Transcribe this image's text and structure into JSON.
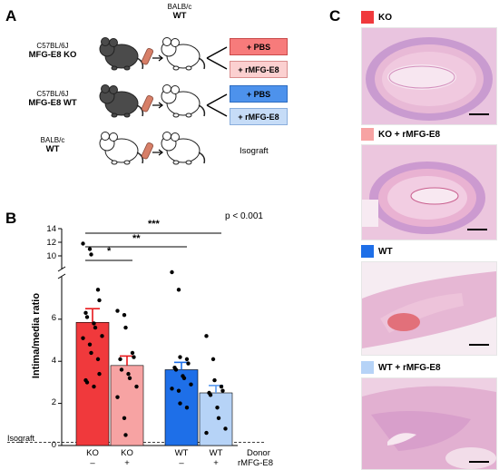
{
  "panel_a": {
    "letter": "A",
    "donor_top": {
      "line1": "BALB/c",
      "line2": "WT"
    },
    "rows": [
      {
        "strain": "C57BL/6J",
        "name": "MFG-E8 KO",
        "mouse": "dark",
        "boxes": [
          {
            "label": "+ PBS",
            "fill": "#f77b7b",
            "stroke": "#c94a4a"
          },
          {
            "label": "+ rMFG-E8",
            "fill": "#fbd0d0",
            "stroke": "#d98e8e"
          }
        ]
      },
      {
        "strain": "C57BL/6J",
        "name": "MFG-E8 WT",
        "mouse": "dark",
        "boxes": [
          {
            "label": "+ PBS",
            "fill": "#4d92ec",
            "stroke": "#2d6cc0"
          },
          {
            "label": "+ rMFG-E8",
            "fill": "#c6dcf7",
            "stroke": "#8aaedc"
          }
        ]
      },
      {
        "strain": "BALB/c",
        "name": "WT",
        "mouse": "white",
        "isograft": "Isograft"
      }
    ]
  },
  "panel_b": {
    "letter": "B",
    "pvalue": "p < 0.001",
    "sig": [
      "*",
      "**",
      "***"
    ],
    "isograft_label": "Isograft",
    "donor_row_label": "Donor",
    "rmfg_row_label": "rMFG-E8",
    "chart_data": {
      "type": "bar",
      "ylabel": "Intima/media ratio",
      "yticks_lower": [
        "0",
        "2",
        "4",
        "6"
      ],
      "yticks_upper": [
        "10",
        "12",
        "14"
      ],
      "axis_break": true,
      "ylim_lower": [
        0,
        7.5
      ],
      "ylim_upper": [
        9.5,
        14
      ],
      "isograft_line": 0.15,
      "categories": [
        "KO",
        "KO",
        "WT",
        "WT"
      ],
      "treatment": [
        "–",
        "+",
        "–",
        "+"
      ],
      "colors": [
        "#f0393c",
        "#f7a3a3",
        "#1e6fe8",
        "#b6d3f7"
      ],
      "err_colors": [
        "#e8171b",
        "#e8171b",
        "#1e6fe8",
        "#5a9af0"
      ],
      "values": [
        5.85,
        3.8,
        3.6,
        2.5
      ],
      "errors": [
        0.65,
        0.45,
        0.35,
        0.35
      ],
      "points": [
        [
          11.8,
          11.0,
          10.2,
          7.4,
          6.9,
          6.3,
          6.1,
          5.8,
          5.6,
          5.2,
          5.1,
          4.8,
          4.4,
          4.1,
          3.4,
          3.1,
          3.0,
          2.8
        ],
        [
          6.4,
          6.2,
          5.6,
          4.4,
          4.2,
          4.1,
          3.6,
          3.4,
          3.2,
          2.8,
          2.3,
          1.3,
          0.5
        ],
        [
          7.6,
          7.4,
          4.2,
          4.1,
          3.9,
          3.7,
          3.6,
          3.3,
          3.2,
          2.9,
          2.7,
          2.6,
          2.0,
          1.8
        ],
        [
          5.2,
          4.1,
          3.1,
          2.8,
          2.6,
          2.5,
          2.4,
          1.8,
          1.3,
          0.8,
          0.6
        ]
      ]
    }
  },
  "panel_c": {
    "letter": "C",
    "images": [
      {
        "label": "KO",
        "color": "#f0393c"
      },
      {
        "label": "KO + rMFG-E8",
        "color": "#f7a3a3"
      },
      {
        "label": "WT",
        "color": "#1e6fe8"
      },
      {
        "label": "WT + rMFG-E8",
        "color": "#b6d3f7"
      }
    ]
  }
}
